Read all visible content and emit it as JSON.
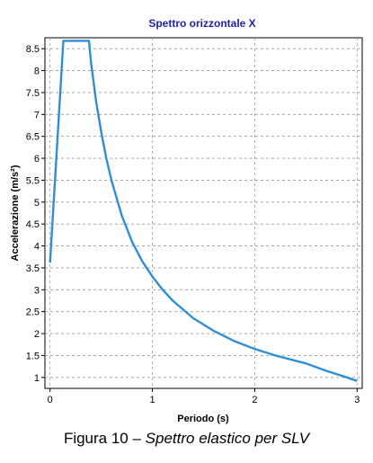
{
  "chart_data": {
    "type": "line",
    "title": "Spettro orizzontale X",
    "xlabel": "Periodo (s)",
    "ylabel": "Accelerazione (m/s²)",
    "xlim": [
      -0.05,
      3.05
    ],
    "ylim": [
      0.75,
      8.75
    ],
    "x_ticks": [
      0,
      1,
      2,
      3
    ],
    "y_ticks": [
      1,
      1.5,
      2,
      2.5,
      3,
      3.5,
      4,
      4.5,
      5,
      5.5,
      6,
      6.5,
      7,
      7.5,
      8,
      8.5
    ],
    "grid": true,
    "series": [
      {
        "color": "#2e8fd6",
        "x": [
          0.0,
          0.13,
          0.38,
          0.4,
          0.45,
          0.5,
          0.55,
          0.6,
          0.7,
          0.8,
          0.9,
          1.0,
          1.1,
          1.2,
          1.4,
          1.6,
          1.8,
          2.0,
          2.2,
          2.4,
          2.5,
          2.7,
          2.9,
          3.0
        ],
        "y": [
          3.62,
          8.68,
          8.68,
          8.2,
          7.3,
          6.6,
          6.0,
          5.5,
          4.7,
          4.1,
          3.65,
          3.3,
          3.0,
          2.75,
          2.35,
          2.06,
          1.83,
          1.65,
          1.5,
          1.38,
          1.32,
          1.15,
          1.0,
          0.92
        ]
      }
    ]
  },
  "caption": {
    "prefix": "Figura 10 – ",
    "italic": "Spettro elastico per SLV"
  }
}
